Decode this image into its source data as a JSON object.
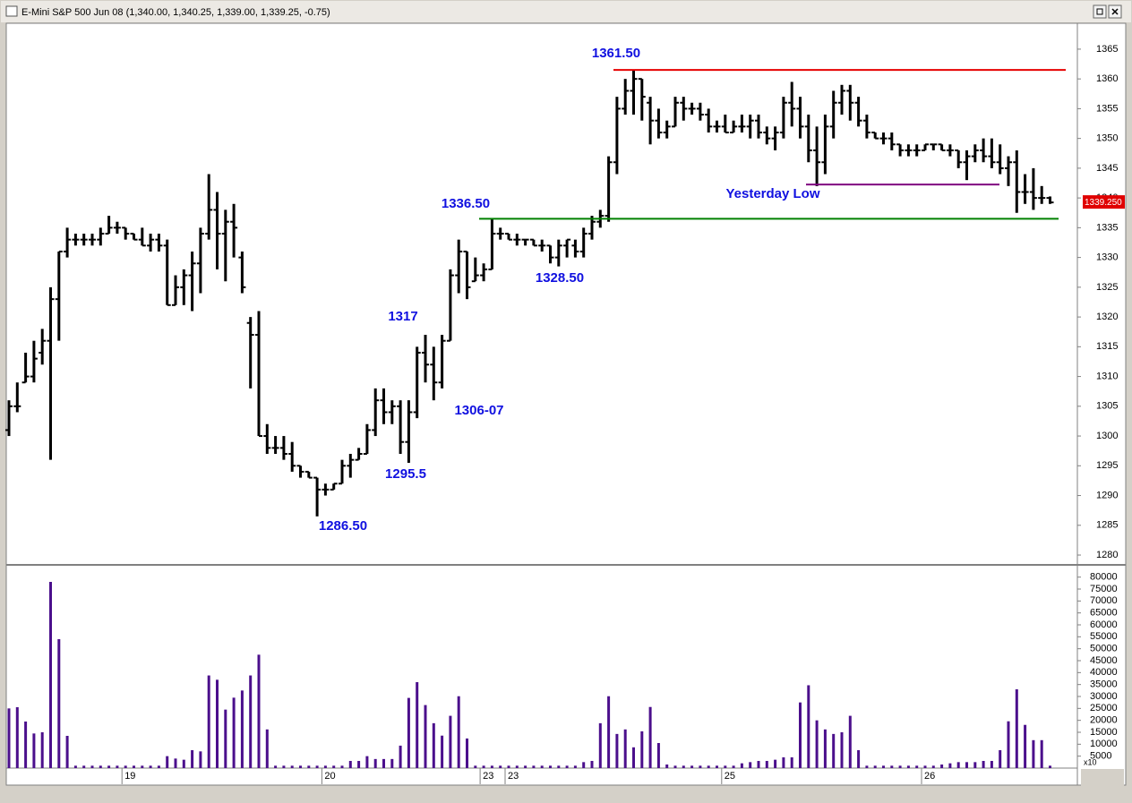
{
  "chart_data": [
    {
      "type": "ohlc",
      "title": "E-Mini S&P 500 Jun 08 (1,340.00, 1,340.25, 1,339.00, 1,339.25, -0.75)",
      "color": "#000000",
      "grid": false,
      "ylim": [
        1278.5,
        1369.5
      ],
      "yticks": [
        1280,
        1285,
        1290,
        1295,
        1300,
        1305,
        1310,
        1315,
        1320,
        1325,
        1330,
        1335,
        1340,
        1345,
        1350,
        1355,
        1360,
        1365
      ],
      "open": [
        1301,
        1305,
        1309,
        1310,
        1314,
        1316,
        1323,
        1331,
        1333,
        1333,
        1333,
        1333,
        1334,
        1335,
        1335,
        1334,
        1333,
        1332,
        1333,
        1332,
        1322,
        1325,
        1327,
        1329,
        1334,
        1338,
        1334,
        1336,
        1330,
        1319,
        1317,
        1300,
        1298,
        1298,
        1297,
        1295,
        1294,
        1293,
        1291,
        1291,
        1292,
        1295,
        1296,
        1297,
        1301,
        1306,
        1304,
        1305,
        1299,
        1304,
        1314,
        1312,
        1309,
        1316,
        1327,
        1331,
        1326,
        1327,
        1328,
        1334,
        1334,
        1333,
        1333,
        1333,
        1332,
        1332,
        1330,
        1332,
        1332,
        1331,
        1334,
        1336,
        1337,
        1346,
        1355,
        1358,
        1360,
        1356,
        1353,
        1351,
        1352,
        1356,
        1355,
        1355,
        1354,
        1352,
        1352,
        1351,
        1352,
        1352,
        1353,
        1351,
        1350,
        1351,
        1356,
        1355,
        1352,
        1348,
        1346,
        1352,
        1356,
        1358,
        1356,
        1353,
        1351,
        1350,
        1350,
        1349,
        1348,
        1348,
        1348,
        1349,
        1349,
        1348,
        1348,
        1346,
        1347,
        1348,
        1347,
        1346,
        1345,
        1346,
        1341,
        1341,
        1340,
        1340
      ],
      "high": [
        1306,
        1309,
        1314,
        1316,
        1318,
        1325,
        1331,
        1335,
        1334,
        1334,
        1334,
        1335,
        1337,
        1336,
        1335,
        1334,
        1335,
        1334,
        1334,
        1333,
        1327,
        1328,
        1331,
        1335,
        1344,
        1341,
        1338,
        1339,
        1331,
        1320,
        1321,
        1302,
        1300,
        1300,
        1299,
        1295,
        1294,
        1293,
        1292,
        1292,
        1296,
        1297,
        1298,
        1302,
        1308,
        1308,
        1306,
        1306,
        1306,
        1315,
        1317,
        1315,
        1317,
        1328,
        1333,
        1331,
        1330,
        1329,
        1336.5,
        1335,
        1334,
        1334,
        1333,
        1333,
        1333,
        1332,
        1333,
        1333,
        1333,
        1335,
        1337,
        1338,
        1347,
        1357,
        1360,
        1361.5,
        1360,
        1357,
        1355,
        1353,
        1357,
        1357,
        1356,
        1356,
        1355,
        1353,
        1354,
        1353,
        1354,
        1354,
        1354,
        1352,
        1352,
        1357,
        1359.5,
        1357,
        1354,
        1352,
        1354,
        1358,
        1359,
        1359,
        1357,
        1354,
        1351,
        1351,
        1351,
        1349,
        1349,
        1349,
        1349,
        1349,
        1349,
        1349,
        1348,
        1348,
        1349,
        1350,
        1350,
        1349,
        1347,
        1348,
        1344,
        1345,
        1342,
        1340.25
      ],
      "low": [
        1300,
        1304,
        1309,
        1309,
        1312,
        1296,
        1316,
        1330,
        1332,
        1332,
        1332,
        1332,
        1334,
        1334,
        1333,
        1333,
        1332,
        1331,
        1331,
        1322,
        1322,
        1322,
        1321,
        1324,
        1333,
        1328,
        1326,
        1330,
        1324,
        1308,
        1300,
        1297,
        1297,
        1296,
        1294,
        1293,
        1293,
        1286.5,
        1290,
        1291,
        1292,
        1293,
        1296,
        1297,
        1300,
        1302,
        1302,
        1297,
        1295.5,
        1303,
        1309,
        1306,
        1308,
        1316,
        1324,
        1323,
        1326,
        1326,
        1328,
        1333,
        1333,
        1332,
        1332,
        1332,
        1331,
        1329,
        1328.5,
        1330,
        1330,
        1330,
        1333,
        1335,
        1336,
        1344,
        1354,
        1354,
        1353,
        1349,
        1350,
        1350,
        1352,
        1353,
        1354,
        1353,
        1351,
        1351,
        1351,
        1351,
        1351,
        1350,
        1350,
        1349,
        1348,
        1350,
        1352,
        1350,
        1346,
        1342,
        1344,
        1350,
        1354,
        1353,
        1352,
        1350,
        1350,
        1349,
        1348,
        1347,
        1347,
        1347,
        1348,
        1348,
        1348,
        1347,
        1345,
        1343,
        1346,
        1346,
        1345,
        1344,
        1342,
        1337.5,
        1339,
        1338,
        1339,
        1339
      ],
      "close": [
        1305,
        1305,
        1310,
        1313,
        1316,
        1323,
        1331,
        1333,
        1333,
        1333,
        1333,
        1334,
        1335,
        1335,
        1334,
        1333,
        1332,
        1333,
        1332,
        1322,
        1325,
        1327,
        1329,
        1334,
        1338,
        1334,
        1336,
        1335,
        1325,
        1317,
        1300,
        1298,
        1298,
        1297,
        1295,
        1294,
        1293,
        1291,
        1291,
        1292,
        1295,
        1296,
        1297,
        1301,
        1306,
        1304,
        1305,
        1299,
        1304,
        1314,
        1312,
        1309,
        1316,
        1327,
        1331,
        1325,
        1327,
        1328,
        1334,
        1334,
        1333,
        1333,
        1333,
        1332,
        1332,
        1330,
        1332,
        1333,
        1331,
        1334,
        1336,
        1337,
        1346,
        1355,
        1358,
        1360,
        1357,
        1353,
        1351,
        1352,
        1356,
        1355,
        1355,
        1354,
        1352,
        1352,
        1351,
        1352,
        1352,
        1353,
        1351,
        1350,
        1351,
        1356,
        1355,
        1352,
        1348,
        1346,
        1352,
        1356,
        1358,
        1356,
        1353,
        1351,
        1350,
        1350,
        1349,
        1348,
        1348,
        1348,
        1349,
        1349,
        1348,
        1348,
        1346,
        1347,
        1348,
        1347,
        1346,
        1345,
        1346,
        1341,
        1341,
        1340,
        1340,
        1339.25
      ],
      "last_label": "1339.250",
      "lines": [
        {
          "value": 1361.5,
          "color": "#e60000"
        },
        {
          "value": 1336.5,
          "color": "#008000"
        },
        {
          "value": 1342.25,
          "color": "#800080"
        }
      ],
      "annotation_color": "#1010e0",
      "annotations": [
        "1361.50",
        "1336.50",
        "1328.50",
        "1317",
        "1306-07",
        "1295.5",
        "1286.50",
        "Yesterday Low"
      ]
    },
    {
      "type": "bar",
      "color": "#4b0f8c",
      "grid": false,
      "ylim": [
        0,
        84000
      ],
      "yticks": [
        5000,
        10000,
        15000,
        20000,
        25000,
        30000,
        35000,
        40000,
        45000,
        50000,
        55000,
        60000,
        65000,
        70000,
        75000,
        80000
      ],
      "axis_note": "x10",
      "categories": [
        null,
        null,
        null,
        null,
        null,
        null,
        null,
        null,
        null,
        null,
        null,
        null,
        null,
        null,
        "19",
        null,
        null,
        null,
        null,
        null,
        null,
        null,
        null,
        null,
        null,
        null,
        null,
        null,
        null,
        null,
        null,
        null,
        null,
        null,
        null,
        null,
        null,
        null,
        "20",
        null,
        null,
        null,
        null,
        null,
        null,
        null,
        null,
        null,
        null,
        null,
        null,
        null,
        null,
        null,
        null,
        null,
        null,
        "23",
        null,
        null,
        "23",
        null,
        null,
        null,
        null,
        null,
        null,
        null,
        null,
        null,
        null,
        null,
        null,
        null,
        null,
        null,
        null,
        null,
        null,
        null,
        null,
        null,
        null,
        null,
        null,
        null,
        "25",
        null,
        null,
        null,
        null,
        null,
        null,
        null,
        null,
        null,
        null,
        null,
        null,
        null,
        null,
        null,
        null,
        null,
        null,
        null,
        null,
        null,
        null,
        null,
        "26",
        null,
        null,
        null,
        null,
        null,
        null,
        null,
        null,
        null,
        null,
        null,
        null,
        null,
        null,
        null
      ],
      "values": [
        25000,
        25500,
        19500,
        14500,
        15000,
        78000,
        54000,
        13500,
        1000,
        1000,
        1000,
        1000,
        1000,
        1000,
        1000,
        1000,
        1000,
        1000,
        1000,
        5000,
        4000,
        3500,
        7500,
        7000,
        38800,
        37000,
        24500,
        29500,
        32500,
        38800,
        47500,
        16200,
        1000,
        1000,
        1000,
        1000,
        1000,
        1000,
        1000,
        1000,
        1000,
        3000,
        3000,
        5000,
        3800,
        3800,
        3800,
        9400,
        29400,
        36000,
        26400,
        18800,
        13600,
        21900,
        30100,
        12400,
        1000,
        1000,
        1000,
        1000,
        1000,
        1000,
        1000,
        1000,
        1000,
        1000,
        1000,
        1000,
        1000,
        2500,
        3000,
        18800,
        30100,
        14300,
        16200,
        8700,
        15400,
        25600,
        10500,
        1500,
        1000,
        1000,
        1000,
        1000,
        1000,
        1000,
        1000,
        1000,
        2000,
        2500,
        3000,
        3000,
        3500,
        4500,
        4500,
        27500,
        34700,
        20000,
        16200,
        14300,
        15000,
        21900,
        7500,
        1000,
        1000,
        1000,
        1000,
        1000,
        1000,
        1000,
        1000,
        1000,
        1500,
        2000,
        2500,
        2500,
        2500,
        3000,
        3000,
        7500,
        19600,
        33000,
        18100,
        11700,
        11700,
        1000
      ]
    }
  ]
}
